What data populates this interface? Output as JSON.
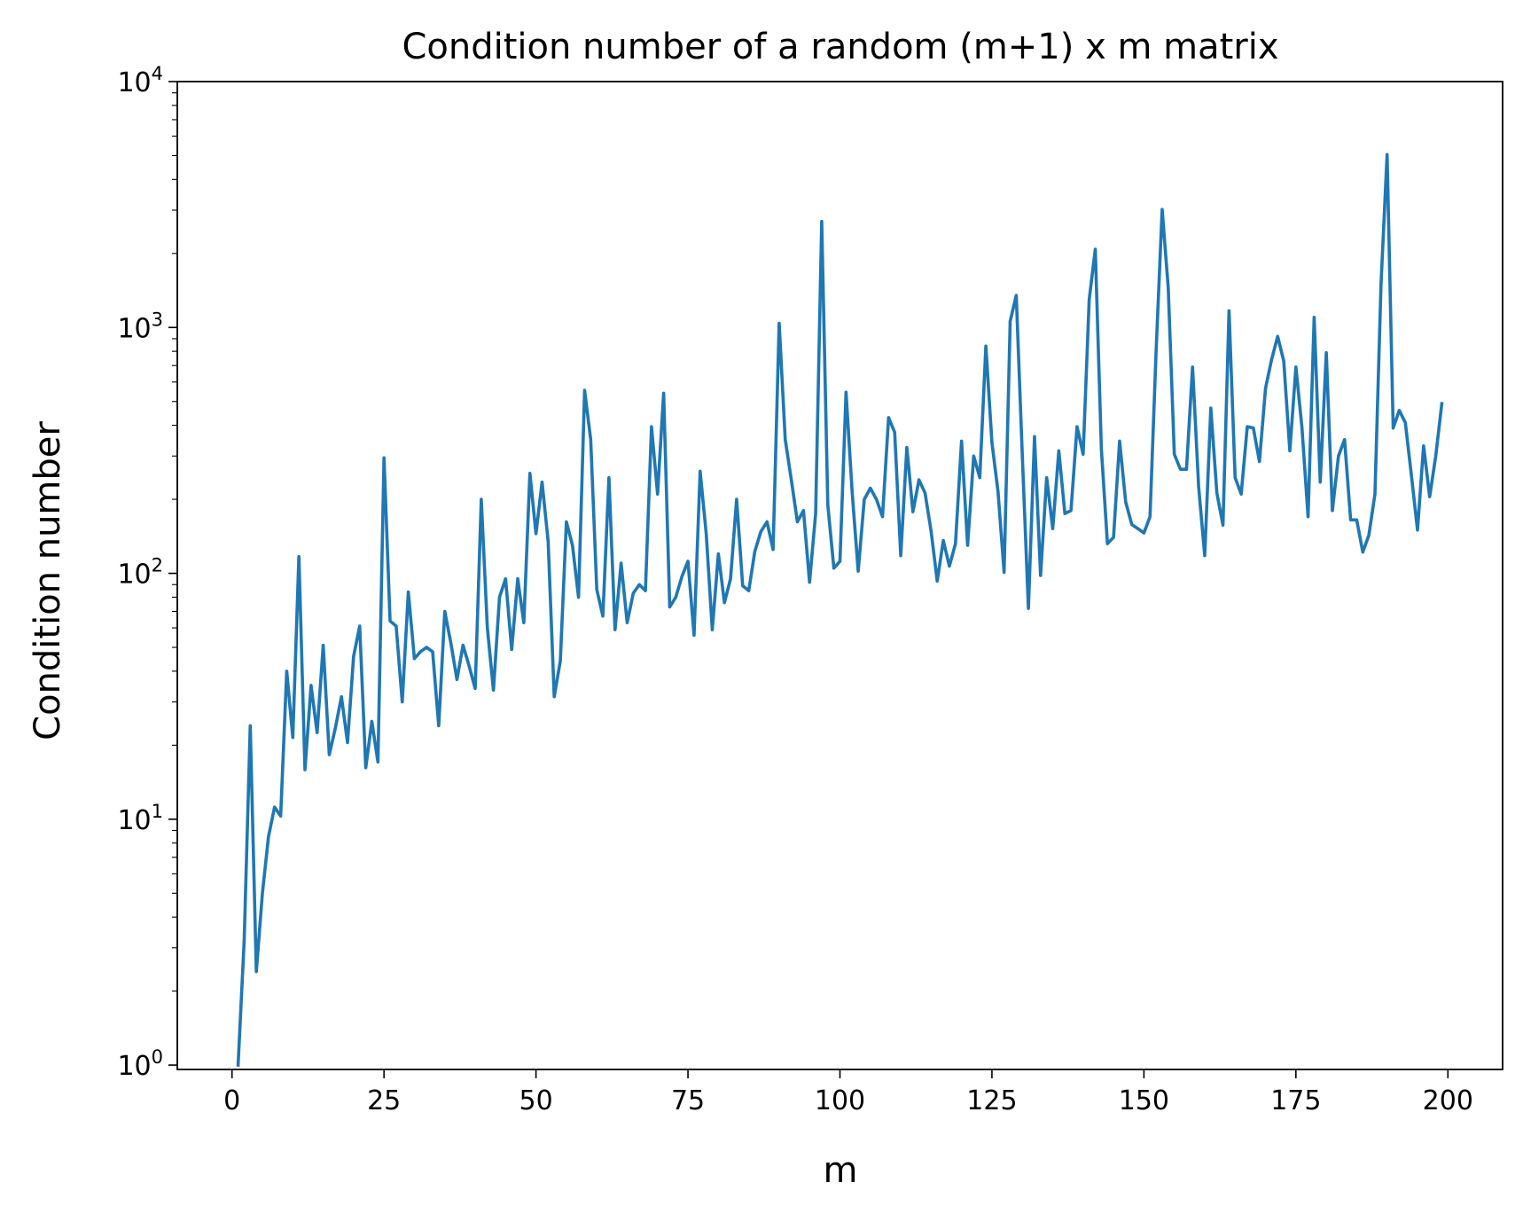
{
  "chart_data": {
    "type": "line",
    "title": "Condition number of a random (m+1) x m matrix",
    "xlabel": "m",
    "ylabel": "Condition number",
    "xlim": [
      -9,
      209
    ],
    "ylim": [
      0.96,
      10000
    ],
    "yscale": "log",
    "grid": false,
    "x_ticks": [
      0,
      25,
      50,
      75,
      100,
      125,
      150,
      175,
      200
    ],
    "y_ticks": [
      {
        "value": 1,
        "base": "10",
        "exp": "0"
      },
      {
        "value": 10,
        "base": "10",
        "exp": "1"
      },
      {
        "value": 100,
        "base": "10",
        "exp": "2"
      },
      {
        "value": 1000,
        "base": "10",
        "exp": "3"
      },
      {
        "value": 10000,
        "base": "10",
        "exp": "4"
      }
    ],
    "series": [
      {
        "color": "#1f77b4",
        "x_start": 1,
        "values": [
          1.0,
          3.2,
          24,
          2.4,
          5.0,
          8.5,
          11.2,
          10.3,
          40,
          21.5,
          117,
          15.9,
          35,
          22.5,
          51,
          18.3,
          23.5,
          31.5,
          20.5,
          46,
          61,
          16.2,
          25,
          17.1,
          295,
          64,
          61,
          30,
          84,
          45,
          48,
          50,
          48,
          24,
          70,
          52,
          37,
          51,
          42,
          34,
          200,
          60,
          33.5,
          80,
          95,
          49,
          95,
          63,
          255,
          145,
          235,
          135,
          31.5,
          44,
          162,
          130,
          80,
          555,
          350,
          86,
          67,
          245,
          59,
          110,
          63,
          83,
          90,
          85,
          395,
          210,
          540,
          73,
          80,
          97,
          112,
          56,
          260,
          145,
          59,
          120,
          76,
          95,
          200,
          89,
          85,
          123,
          148,
          162,
          125,
          1040,
          350,
          240,
          162,
          180,
          92,
          175,
          2700,
          190,
          105,
          112,
          545,
          215,
          102,
          200,
          222,
          200,
          170,
          430,
          375,
          118,
          325,
          178,
          240,
          212,
          148,
          93,
          136,
          107,
          132,
          345,
          130,
          300,
          245,
          840,
          340,
          215,
          101,
          1060,
          1350,
          300,
          72,
          360,
          98,
          245,
          152,
          315,
          175,
          180,
          395,
          305,
          1300,
          2080,
          320,
          132,
          140,
          345,
          195,
          158,
          152,
          146,
          170,
          800,
          3020,
          1450,
          305,
          265,
          265,
          690,
          225,
          118,
          470,
          212,
          157,
          1170,
          245,
          210,
          395,
          390,
          285,
          565,
          740,
          920,
          730,
          315,
          690,
          390,
          170,
          1100,
          235,
          790,
          180,
          300,
          350,
          165,
          165,
          122,
          143,
          210,
          1500,
          5050,
          390,
          460,
          410,
          250,
          150,
          330,
          205,
          300,
          490
        ]
      }
    ]
  }
}
